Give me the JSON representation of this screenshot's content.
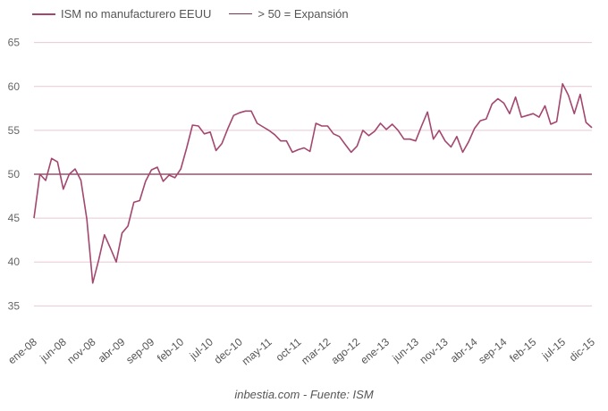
{
  "chart_data": {
    "type": "line",
    "ylim": [
      33,
      67
    ],
    "yticks": [
      35,
      40,
      45,
      50,
      55,
      60,
      65
    ],
    "xticks": [
      {
        "label": "ene-08",
        "index": 0
      },
      {
        "label": "jun-08",
        "index": 5
      },
      {
        "label": "nov-08",
        "index": 10
      },
      {
        "label": "abr-09",
        "index": 15
      },
      {
        "label": "sep-09",
        "index": 20
      },
      {
        "label": "feb-10",
        "index": 25
      },
      {
        "label": "jul-10",
        "index": 30
      },
      {
        "label": "dec-10",
        "index": 35
      },
      {
        "label": "may-11",
        "index": 40
      },
      {
        "label": "oct-11",
        "index": 45
      },
      {
        "label": "mar-12",
        "index": 50
      },
      {
        "label": "ago-12",
        "index": 55
      },
      {
        "label": "ene-13",
        "index": 60
      },
      {
        "label": "jun-13",
        "index": 65
      },
      {
        "label": "nov-13",
        "index": 70
      },
      {
        "label": "abr-14",
        "index": 75
      },
      {
        "label": "sep-14",
        "index": 80
      },
      {
        "label": "feb-15",
        "index": 85
      },
      {
        "label": "jul-15",
        "index": 90
      },
      {
        "label": "dic-15",
        "index": 95
      }
    ],
    "series": [
      {
        "name": "ISM no manufacturero EEUU",
        "color": "#a3476f",
        "values": [
          45.0,
          50.0,
          49.3,
          51.8,
          51.4,
          48.3,
          50.0,
          50.6,
          49.3,
          44.9,
          37.6,
          40.2,
          43.1,
          41.6,
          40.0,
          43.3,
          44.1,
          46.8,
          47.0,
          49.2,
          50.5,
          50.8,
          49.2,
          49.9,
          49.6,
          50.6,
          53.0,
          55.6,
          55.5,
          54.6,
          54.8,
          52.7,
          53.5,
          55.2,
          56.7,
          57.0,
          57.2,
          57.2,
          55.8,
          55.4,
          55.0,
          54.5,
          53.8,
          53.8,
          52.5,
          52.8,
          53.0,
          52.6,
          55.8,
          55.5,
          55.5,
          54.6,
          54.3,
          53.4,
          52.5,
          53.2,
          55.0,
          54.4,
          54.9,
          55.8,
          55.1,
          55.7,
          55.0,
          54.0,
          54.0,
          53.8,
          55.5,
          57.1,
          54.0,
          55.0,
          53.8,
          53.1,
          54.3,
          52.5,
          53.7,
          55.2,
          56.1,
          56.3,
          58.0,
          58.6,
          58.1,
          56.9,
          58.8,
          56.5,
          56.7,
          56.9,
          56.5,
          57.8,
          55.7,
          56.0,
          60.3,
          59.0,
          56.9,
          59.1,
          55.9,
          55.3
        ]
      },
      {
        "name": "> 50 = Expansión",
        "color": "#7a3350",
        "values": [
          50,
          50
        ]
      }
    ]
  },
  "credit": "inbestia.com - Fuente: ISM"
}
